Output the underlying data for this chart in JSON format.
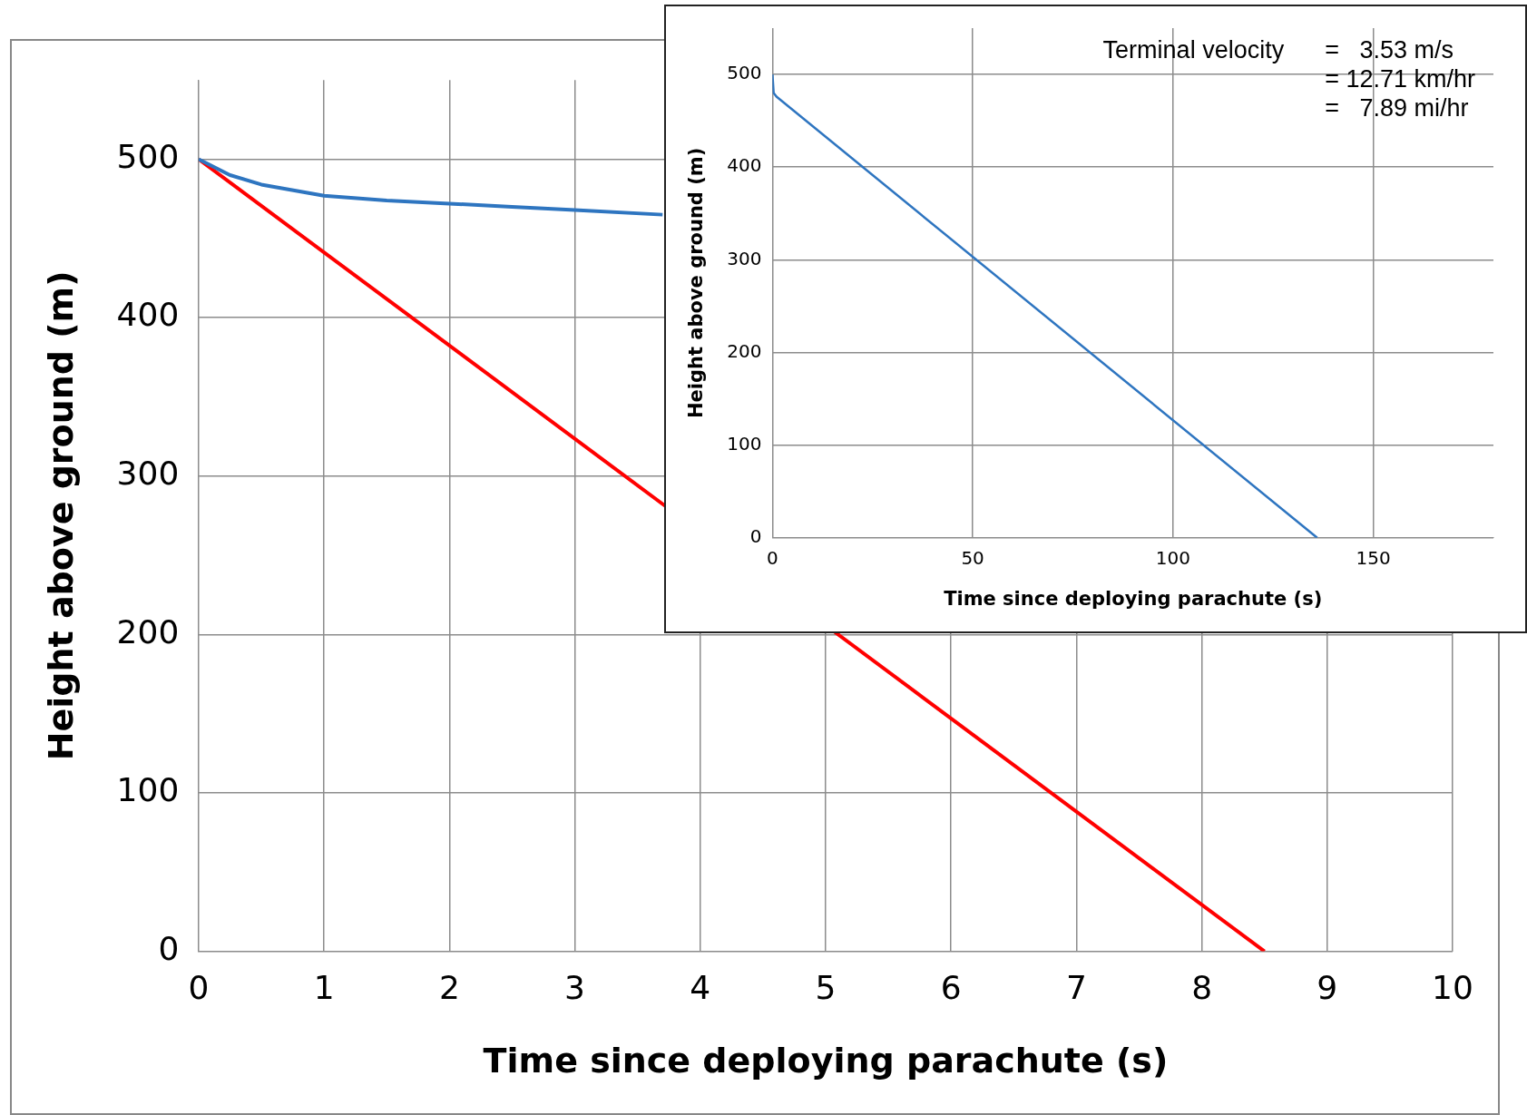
{
  "chart_data": [
    {
      "type": "line",
      "xlabel": "Time since deploying parachute (s)",
      "ylabel": "Height above ground (m)",
      "xlim": [
        0,
        10
      ],
      "xticks": [
        0,
        1,
        2,
        3,
        4,
        5,
        6,
        7,
        8,
        9,
        10
      ],
      "ylim": [
        0,
        550
      ],
      "yticks": [
        0,
        100,
        200,
        300,
        400,
        500
      ],
      "grid": true,
      "series": [
        {
          "color": "#2e75c0",
          "x": [
            0,
            0.25,
            0.5,
            1,
            1.5,
            2,
            2.5,
            3,
            3.7
          ],
          "values": [
            500,
            490,
            484,
            477,
            474,
            472,
            470,
            468,
            465
          ]
        },
        {
          "color": "#ff0000",
          "x": [
            0,
            8.5
          ],
          "values": [
            500,
            0
          ]
        }
      ]
    },
    {
      "type": "line",
      "xlabel": "Time since deploying parachute (s)",
      "ylabel": "Height above ground (m)",
      "xlim": [
        0,
        180
      ],
      "xticks": [
        0,
        50,
        100,
        150
      ],
      "ylim": [
        0,
        550
      ],
      "yticks": [
        0,
        100,
        200,
        300,
        400,
        500
      ],
      "grid": true,
      "annotations": [
        "Terminal velocity",
        "=   3.53 m/s",
        "= 12.71 km/hr",
        "=   7.89 mi/hr"
      ],
      "series": [
        {
          "color": "#2e75c0",
          "x": [
            0,
            0.3,
            1,
            136
          ],
          "values": [
            500,
            480,
            476,
            0
          ]
        }
      ]
    }
  ]
}
